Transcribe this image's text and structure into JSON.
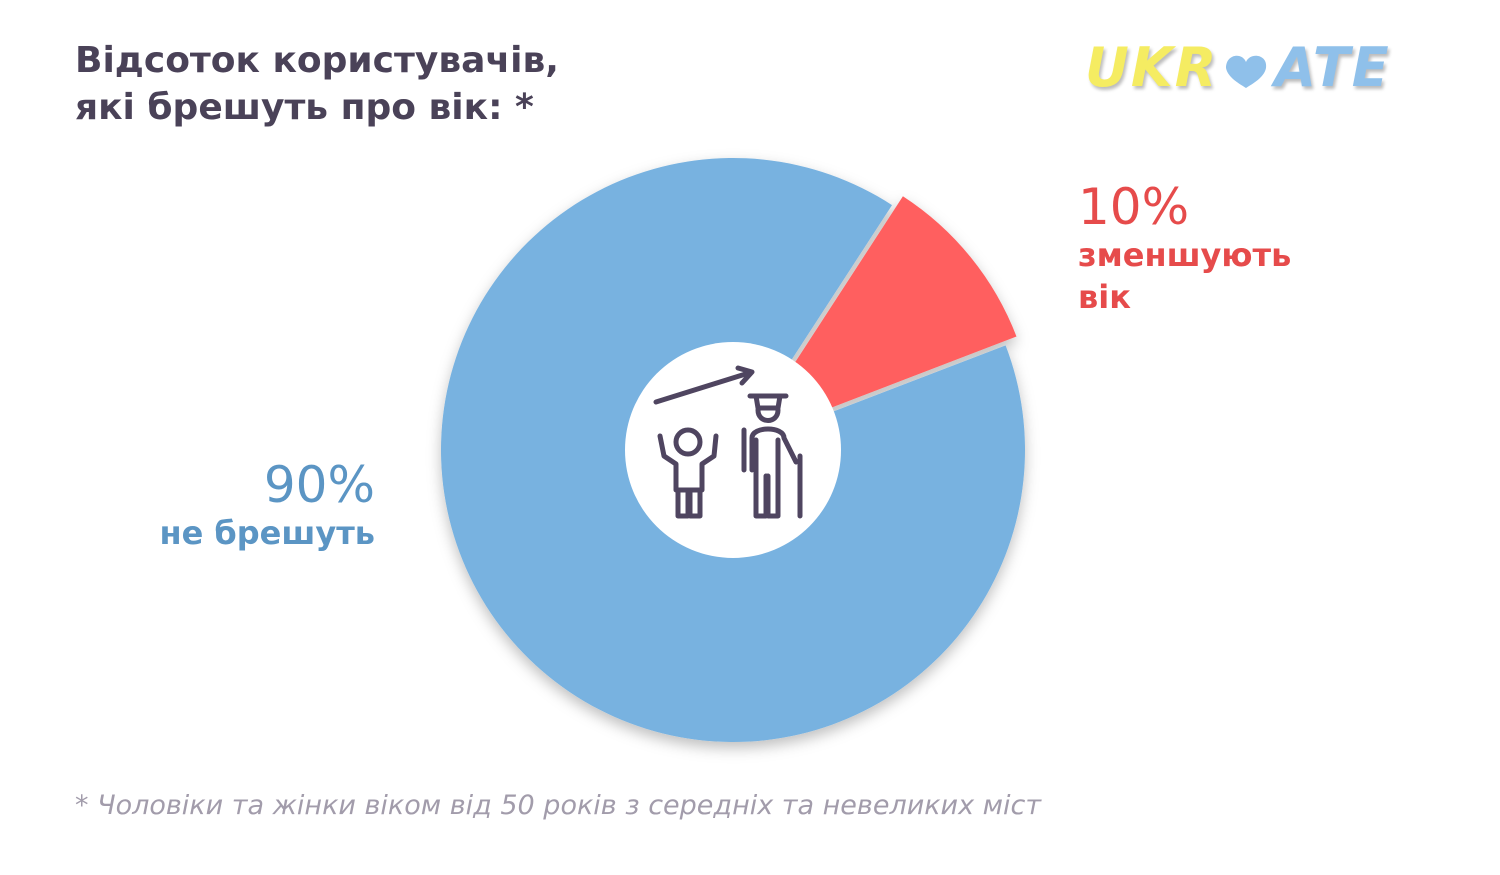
{
  "chart_data": {
    "type": "pie",
    "title": "Відсоток користувачів, які брешуть про вік: *",
    "categories": [
      "зменшують вік",
      "не брешуть"
    ],
    "values": [
      10,
      90
    ],
    "value_labels": [
      "10%",
      "90%"
    ],
    "colors": [
      "#ff5f5f",
      "#78b2e0"
    ],
    "label_colors": [
      "#e64b4b",
      "#5b95c4"
    ],
    "explode": [
      true,
      false
    ],
    "footnote": "* Чоловіки та жінки віком від 50 років з середніх та невеликих міст"
  },
  "logo": {
    "left": "UKR",
    "right": "ATE"
  }
}
